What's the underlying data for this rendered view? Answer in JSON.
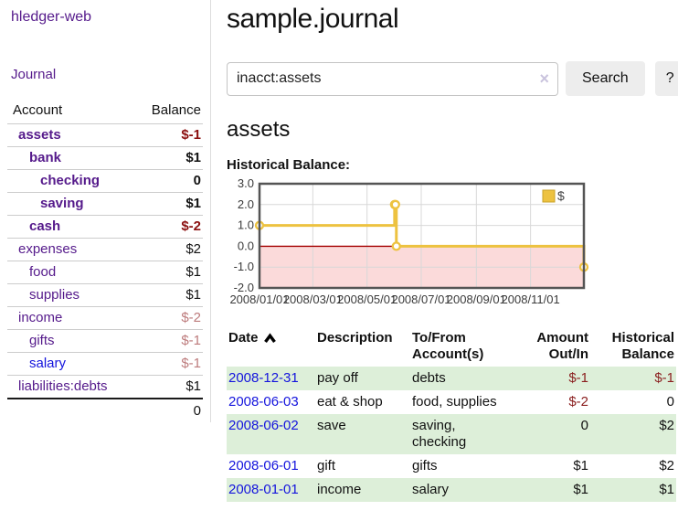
{
  "sidebar": {
    "brand": "hledger-web",
    "journal_label": "Journal",
    "accounts_header": {
      "account": "Account",
      "balance": "Balance"
    },
    "accounts": [
      {
        "name": "assets",
        "indent": 1,
        "bold": true,
        "balance": "$-1",
        "balance_tone": "strong-negative",
        "link_style": "purple"
      },
      {
        "name": "bank",
        "indent": 2,
        "bold": true,
        "balance": "$1",
        "balance_tone": "normal",
        "link_style": "purple"
      },
      {
        "name": "checking",
        "indent": 3,
        "bold": true,
        "balance": "0",
        "balance_tone": "normal",
        "link_style": "purple"
      },
      {
        "name": "saving",
        "indent": 3,
        "bold": true,
        "balance": "$1",
        "balance_tone": "normal",
        "link_style": "purple"
      },
      {
        "name": "cash",
        "indent": 2,
        "bold": true,
        "balance": "$-2",
        "balance_tone": "strong-negative",
        "link_style": "purple"
      },
      {
        "name": "expenses",
        "indent": 1,
        "bold": false,
        "balance": "$2",
        "balance_tone": "normal",
        "link_style": "purple"
      },
      {
        "name": "food",
        "indent": 2,
        "bold": false,
        "balance": "$1",
        "balance_tone": "normal",
        "link_style": "purple"
      },
      {
        "name": "supplies",
        "indent": 2,
        "bold": false,
        "balance": "$1",
        "balance_tone": "normal",
        "link_style": "purple"
      },
      {
        "name": "income",
        "indent": 1,
        "bold": false,
        "balance": "$-2",
        "balance_tone": "soft-negative",
        "link_style": "purple"
      },
      {
        "name": "gifts",
        "indent": 2,
        "bold": false,
        "balance": "$-1",
        "balance_tone": "soft-negative",
        "link_style": "purple"
      },
      {
        "name": "salary",
        "indent": 2,
        "bold": false,
        "balance": "$-1",
        "balance_tone": "soft-negative",
        "link_style": "blue"
      },
      {
        "name": "liabilities:debts",
        "indent": 1,
        "bold": false,
        "balance": "$1",
        "balance_tone": "normal",
        "link_style": "purple"
      }
    ],
    "total": "0"
  },
  "header": {
    "title": "sample.journal"
  },
  "search": {
    "value": "inacct:assets",
    "clear_icon": "×",
    "button_label": "Search",
    "help_label": "?"
  },
  "account_page": {
    "heading": "assets",
    "chart_label": "Historical Balance:"
  },
  "chart_data": {
    "type": "line",
    "step": true,
    "title": "Historical Balance",
    "xlim": [
      "2008-01-01",
      "2008-12-31"
    ],
    "ylim": [
      -2.0,
      3.0
    ],
    "x_ticks": [
      "2008/01/01",
      "2008/03/01",
      "2008/05/01",
      "2008/07/01",
      "2008/09/01",
      "2008/11/01"
    ],
    "y_ticks": [
      3.0,
      2.0,
      1.0,
      0.0,
      -1.0,
      -2.0
    ],
    "grid": true,
    "legend": {
      "label": "$",
      "position": "top-right"
    },
    "series": [
      {
        "name": "$",
        "color": "#edc240",
        "points": [
          [
            "2008-01-01",
            1
          ],
          [
            "2008-06-01",
            2
          ],
          [
            "2008-06-02",
            2
          ],
          [
            "2008-06-03",
            0
          ],
          [
            "2008-12-31",
            -1
          ]
        ]
      }
    ],
    "negative_region_color": "#fbdada",
    "zero_line_color": "#a40000",
    "border_color": "#545454"
  },
  "transactions": {
    "columns": [
      "Date",
      "Description",
      "To/From Account(s)",
      "Amount Out/In",
      "Historical Balance"
    ],
    "sort": {
      "column": "Date",
      "direction": "asc"
    },
    "rows": [
      {
        "date": "2008-12-31",
        "description": "pay off",
        "accounts": "debts",
        "amount": "$-1",
        "balance": "$-1"
      },
      {
        "date": "2008-06-03",
        "description": "eat & shop",
        "accounts": "food, supplies",
        "amount": "$-2",
        "balance": "0"
      },
      {
        "date": "2008-06-02",
        "description": "save",
        "accounts": "saving, checking",
        "amount": "0",
        "balance": "$2"
      },
      {
        "date": "2008-06-01",
        "description": "gift",
        "accounts": "gifts",
        "amount": "$1",
        "balance": "$2"
      },
      {
        "date": "2008-01-01",
        "description": "income",
        "accounts": "salary",
        "amount": "$1",
        "balance": "$1"
      }
    ]
  },
  "colors": {
    "link_purple": "#551A8B",
    "link_blue": "#1414dd",
    "negative_strong": "#8b0f0f",
    "negative_soft": "#bd7b7c",
    "row_green": "#ddefd9",
    "series_gold": "#edc240",
    "button_gray": "#ededed"
  }
}
